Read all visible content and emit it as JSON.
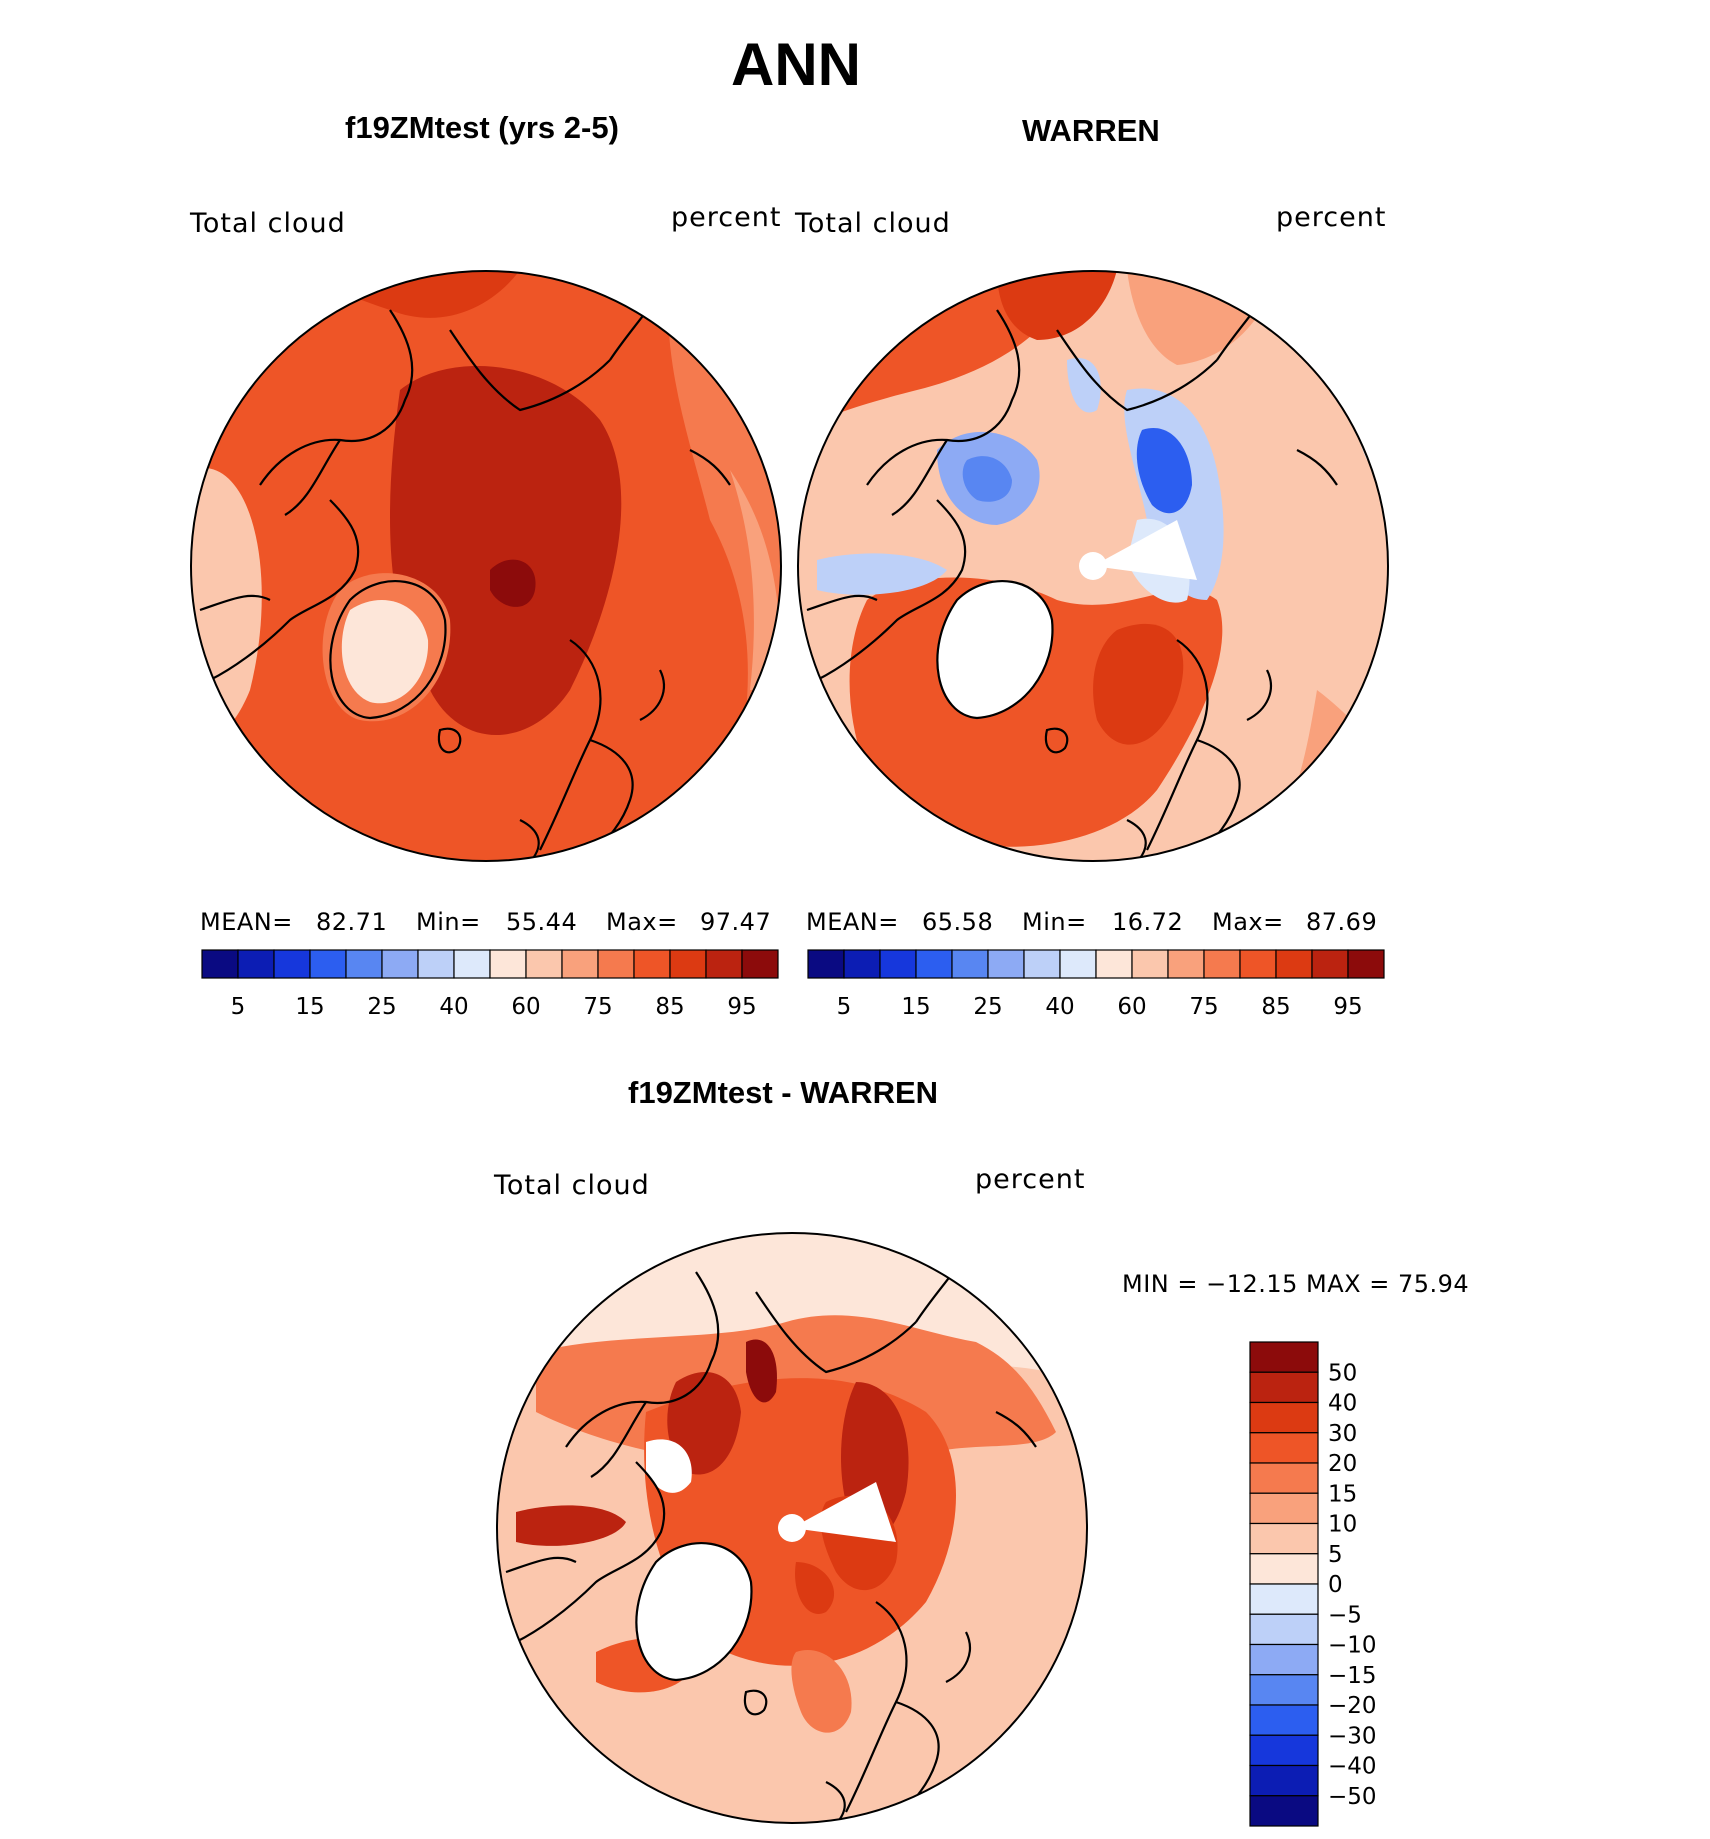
{
  "page": {
    "title": "ANN",
    "panel_left": {
      "title": "f19ZMtest (yrs 2-5)",
      "variable": "Total cloud",
      "units": "percent",
      "stats": {
        "mean_label": "MEAN=",
        "mean": "82.71",
        "min_label": "Min=",
        "min": "55.44",
        "max_label": "Max=",
        "max": "97.47"
      }
    },
    "panel_right": {
      "title": "WARREN",
      "variable": "Total cloud",
      "units": "percent",
      "stats": {
        "mean_label": "MEAN=",
        "mean": "65.58",
        "min_label": "Min=",
        "min": "16.72",
        "max_label": "Max=",
        "max": "87.69"
      }
    },
    "panel_diff": {
      "title": "f19ZMtest - WARREN",
      "variable": "Total cloud",
      "units": "percent",
      "minmax": "MIN = −12.15 MAX =   75.94"
    }
  },
  "colorbar_top": {
    "colors": [
      "#0a0a82",
      "#0c1db4",
      "#1637dc",
      "#2c5ef0",
      "#5886f2",
      "#8daaf4",
      "#bdd0f8",
      "#dde9fb",
      "#fde6d9",
      "#fbc7ad",
      "#f9a17c",
      "#f57a4e",
      "#ee5527",
      "#dc3a12",
      "#bb2310",
      "#8c0b0b"
    ],
    "tick_labels": [
      "5",
      "15",
      "25",
      "40",
      "60",
      "75",
      "85",
      "95"
    ]
  },
  "colorbar_diff": {
    "colors": [
      "#8c0b0b",
      "#bb2310",
      "#dc3a12",
      "#ee5527",
      "#f57a4e",
      "#f9a17c",
      "#fbc7ad",
      "#fde6d9",
      "#dde9fb",
      "#bdd0f8",
      "#8daaf4",
      "#5886f2",
      "#2c5ef0",
      "#1637dc",
      "#0c1db4",
      "#0a0a82"
    ],
    "tick_labels": [
      "50",
      "40",
      "30",
      "20",
      "15",
      "10",
      "5",
      "0",
      "−5",
      "−10",
      "−15",
      "−20",
      "−30",
      "−40",
      "−50"
    ]
  }
}
